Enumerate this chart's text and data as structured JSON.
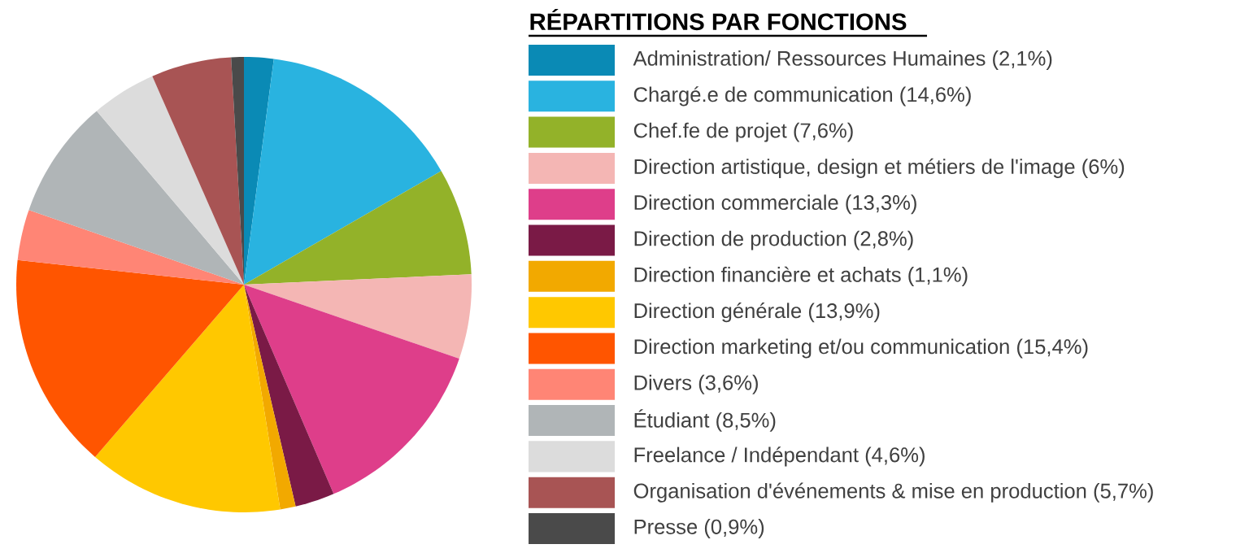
{
  "chart_data": {
    "type": "pie",
    "title": "RÉPARTITIONS PAR FONCTIONS",
    "legend": "right",
    "categories": [
      "Administration/ Ressources Humaines (2,1%)",
      "Chargé.e de communication (14,6%)",
      "Chef.fe de projet (7,6%)",
      "Direction artistique, design et métiers de l'image (6%)",
      "Direction commerciale (13,3%)",
      "Direction de production (2,8%)",
      "Direction financière et achats (1,1%)",
      "Direction générale (13,9%)",
      "Direction marketing et/ou communication (15,4%)",
      "Divers (3,6%)",
      "Étudiant (8,5%)",
      "Freelance / Indépendant (4,6%)",
      "Organisation d'événements & mise en production (5,7%)",
      "Presse (0,9%)"
    ],
    "values": [
      2.1,
      14.6,
      7.6,
      6,
      13.3,
      2.8,
      1.1,
      13.9,
      15.4,
      3.6,
      8.5,
      4.6,
      5.7,
      0.9
    ],
    "colors": [
      "#0a8ab5",
      "#29b3e0",
      "#93b229",
      "#f4b6b4",
      "#de3e8a",
      "#7a1a46",
      "#f2a900",
      "#ffc800",
      "#ff5500",
      "#ff8575",
      "#b0b5b7",
      "#dcdcdc",
      "#a85454",
      "#4a4a4a"
    ]
  }
}
